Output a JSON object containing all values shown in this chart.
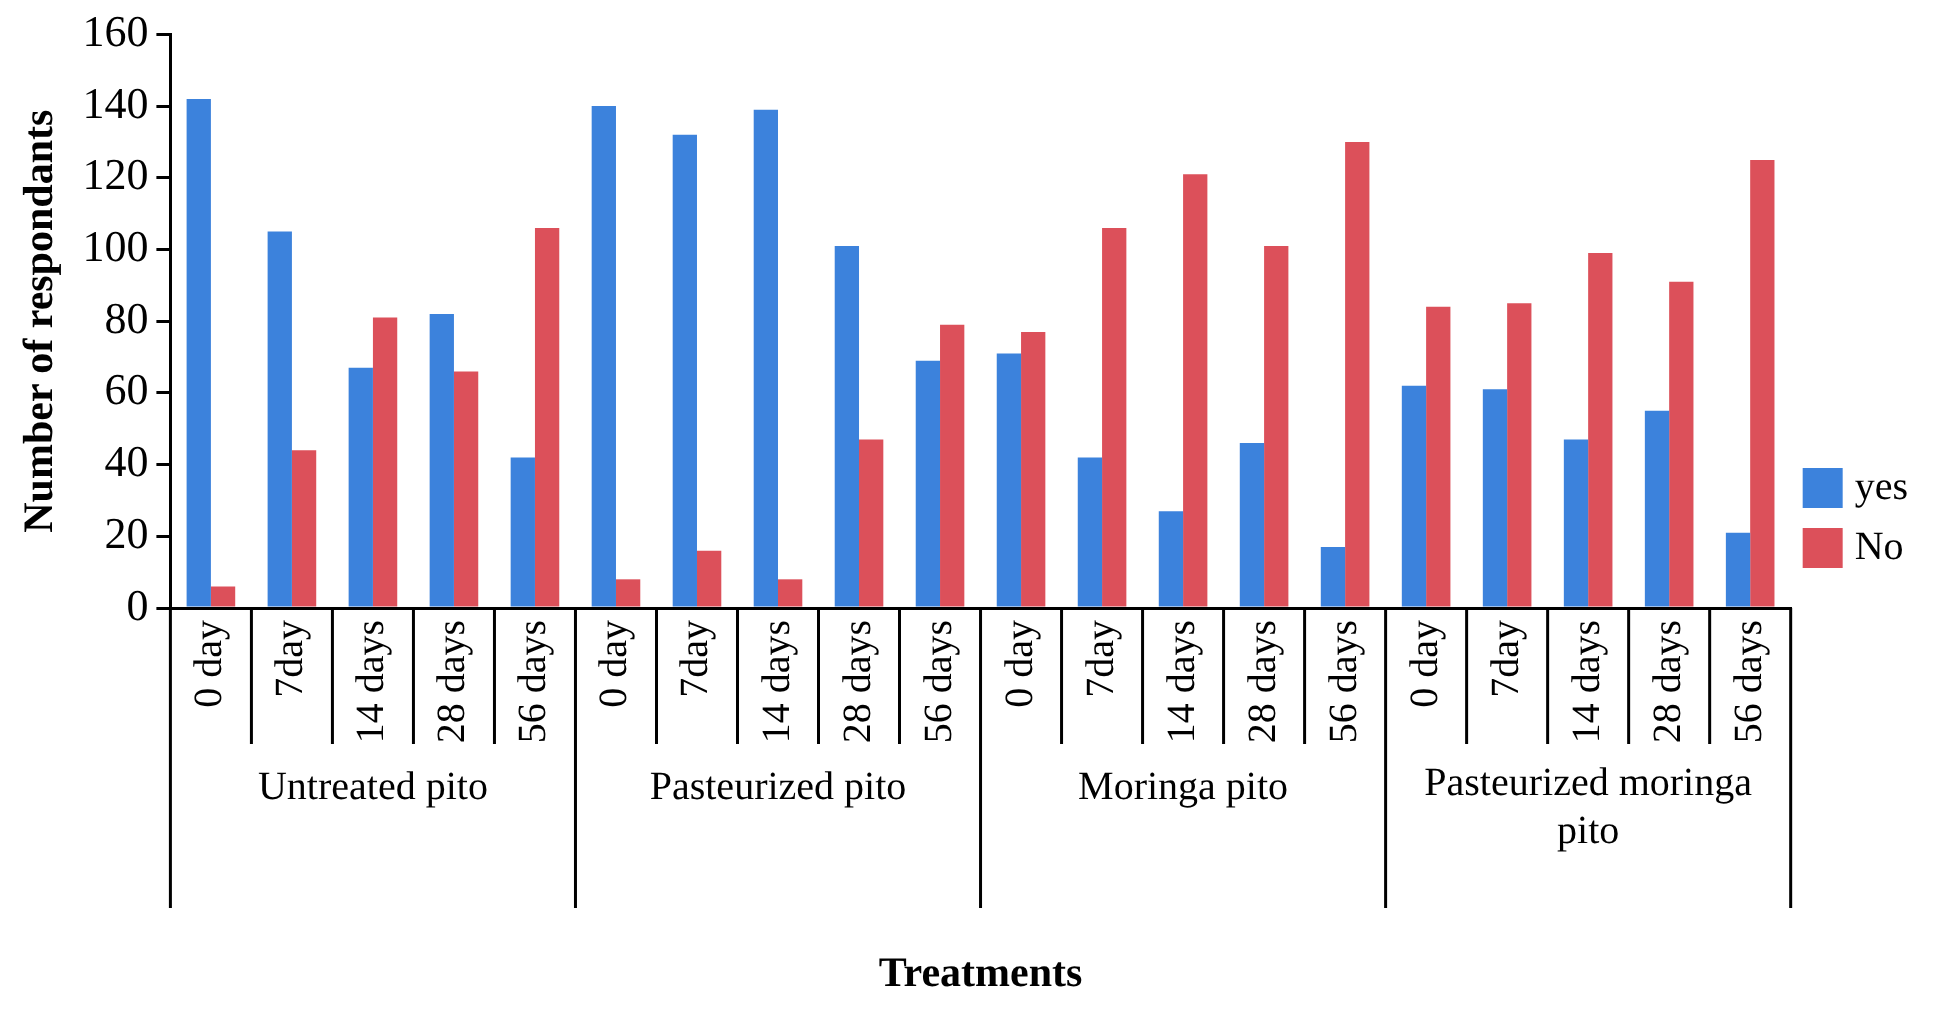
{
  "chart_data": {
    "type": "bar",
    "xlabel": "Treatments",
    "ylabel": "Number of respondants",
    "categories": [
      "0 day",
      "7day",
      "14 days",
      "28 days",
      "56 days",
      "0 day",
      "7day",
      "14 days",
      "28 days",
      "56 days",
      "0 day",
      "7day",
      "14 days",
      "28 days",
      "56 days",
      "0 day",
      "7day",
      "14 days",
      "28 days",
      "56 days"
    ],
    "series": [
      {
        "name": "yes",
        "color": "#3c82dc",
        "values": [
          142,
          105,
          67,
          82,
          42,
          140,
          132,
          139,
          101,
          69,
          71,
          42,
          27,
          46,
          17,
          62,
          61,
          47,
          55,
          21
        ]
      },
      {
        "name": "No",
        "color": "#dc505a",
        "values": [
          6,
          44,
          81,
          66,
          106,
          8,
          16,
          8,
          47,
          79,
          77,
          106,
          121,
          101,
          130,
          84,
          85,
          99,
          91,
          125
        ]
      }
    ],
    "annotations": [
      "Untreated pito",
      "Pasteurized pito",
      "Moringa pito",
      "Pasteurized moringa pito"
    ],
    "ylim": [
      0,
      160
    ],
    "yticks": [
      0,
      20,
      40,
      60,
      80,
      100,
      120,
      140,
      160
    ],
    "grid": false,
    "legend": "right"
  }
}
